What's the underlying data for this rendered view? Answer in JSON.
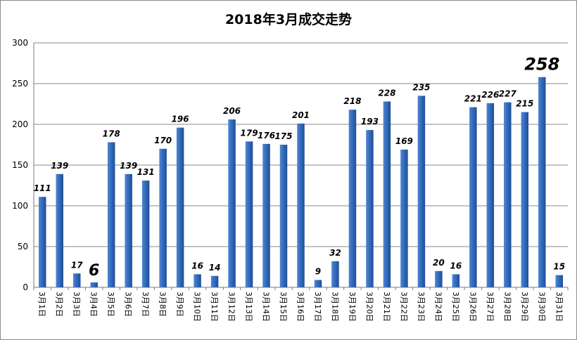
{
  "chart_data": {
    "type": "bar",
    "title": "2018年3月成交走势",
    "xlabel": "",
    "ylabel": "",
    "ylim": [
      0,
      300
    ],
    "yticks": [
      0,
      50,
      100,
      150,
      200,
      250,
      300
    ],
    "grid": true,
    "categories": [
      "3月1日",
      "3月2日",
      "3月3日",
      "3月4日",
      "3月5日",
      "3月6日",
      "3月7日",
      "3月8日",
      "3月9日",
      "3月10日",
      "3月11日",
      "3月12日",
      "3月13日",
      "3月14日",
      "3月15日",
      "3月16日",
      "3月17日",
      "3月18日",
      "3月19日",
      "3月20日",
      "3月21日",
      "3月22日",
      "3月23日",
      "3月24日",
      "3月25日",
      "3月26日",
      "3月27日",
      "3月28日",
      "3月29日",
      "3月30日",
      "3月31日"
    ],
    "values": [
      111,
      139,
      17,
      6,
      178,
      139,
      131,
      170,
      196,
      16,
      14,
      206,
      179,
      176,
      175,
      201,
      9,
      32,
      218,
      193,
      228,
      169,
      235,
      20,
      16,
      221,
      226,
      227,
      215,
      258,
      15
    ],
    "highlights": [
      {
        "category": "3月4日",
        "label_color": "#1fa33a"
      },
      {
        "category": "3月30日",
        "label_color": "#e8202a"
      }
    ],
    "bar_color": "#2f67b8"
  }
}
